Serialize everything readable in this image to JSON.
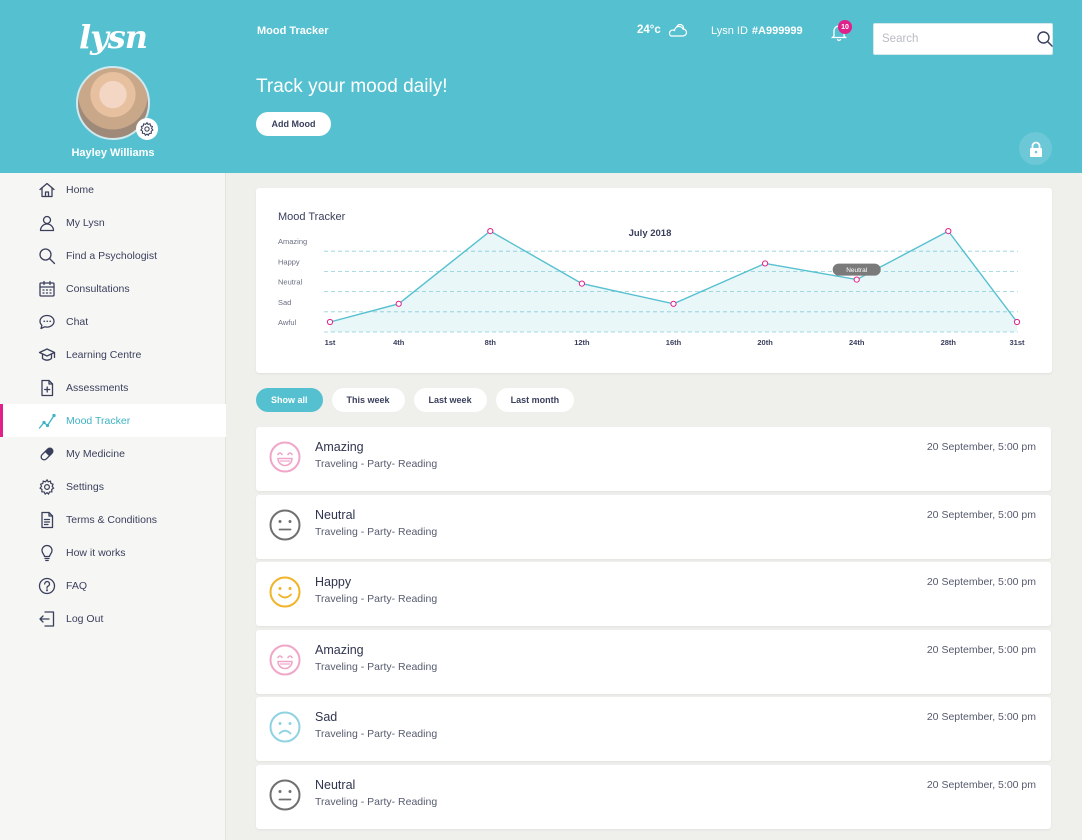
{
  "brand": {
    "logo": "lysn"
  },
  "profile": {
    "name": "Hayley Williams"
  },
  "sidebar": {
    "items": [
      {
        "label": "Home",
        "icon": "home-icon"
      },
      {
        "label": "My Lysn",
        "icon": "user-icon"
      },
      {
        "label": "Find a Psychologist",
        "icon": "search-icon"
      },
      {
        "label": "Consultations",
        "icon": "calendar-icon"
      },
      {
        "label": "Chat",
        "icon": "chat-icon"
      },
      {
        "label": "Learning Centre",
        "icon": "graduation-cap-icon"
      },
      {
        "label": "Assessments",
        "icon": "document-plus-icon"
      },
      {
        "label": "Mood Tracker",
        "icon": "trend-line-icon",
        "active": true
      },
      {
        "label": "My Medicine",
        "icon": "pill-icon"
      },
      {
        "label": "Settings",
        "icon": "gear-icon"
      },
      {
        "label": "Terms & Conditions",
        "icon": "document-icon"
      },
      {
        "label": "How it works",
        "icon": "lightbulb-icon"
      },
      {
        "label": "FAQ",
        "icon": "question-icon"
      },
      {
        "label": "Log Out",
        "icon": "logout-icon"
      }
    ]
  },
  "header": {
    "title": "Mood Tracker",
    "temperature": "24°c",
    "lysn_id_label": "Lysn ID",
    "lysn_id_value": "#A999999",
    "notification_count": "10",
    "search_placeholder": "Search",
    "headline": "Track your mood daily!",
    "add_mood_label": "Add Mood"
  },
  "colors": {
    "accent": "#55c0cf",
    "highlight": "#e0218a",
    "amazing": "#f0a6c8",
    "neutral": "#707070",
    "happy": "#f0b429",
    "sad": "#8fd2e2"
  },
  "chart_data": {
    "type": "area",
    "title": "Mood Tracker",
    "subtitle": "July 2018",
    "y_levels": [
      "Awful",
      "Sad",
      "Neutral",
      "Happy",
      "Amazing"
    ],
    "x_ticks": [
      "1st",
      "4th",
      "8th",
      "12th",
      "16th",
      "20th",
      "24th",
      "28th",
      "31st"
    ],
    "x_tick_days": [
      1,
      4,
      8,
      12,
      16,
      20,
      24,
      28,
      31
    ],
    "x_range": [
      1,
      31
    ],
    "y_range": [
      0,
      4.5
    ],
    "grid": true,
    "points": [
      {
        "x": 1,
        "y": 0
      },
      {
        "x": 4,
        "y": 0.9
      },
      {
        "x": 8,
        "y": 4.5
      },
      {
        "x": 12,
        "y": 1.9
      },
      {
        "x": 16,
        "y": 0.9
      },
      {
        "x": 20,
        "y": 2.9
      },
      {
        "x": 24,
        "y": 2.1
      },
      {
        "x": 28,
        "y": 4.5
      },
      {
        "x": 31,
        "y": 0
      }
    ],
    "tooltip": {
      "x": 24,
      "label": "Neutral"
    }
  },
  "filters": [
    {
      "label": "Show all",
      "active": true
    },
    {
      "label": "This week",
      "active": false
    },
    {
      "label": "Last week",
      "active": false
    },
    {
      "label": "Last month",
      "active": false
    }
  ],
  "moods": [
    {
      "mood": "Amazing",
      "face": "amazing-face-icon",
      "tags": "Traveling - Party- Reading",
      "time": "20 September, 5:00 pm"
    },
    {
      "mood": "Neutral",
      "face": "neutral-face-icon",
      "tags": "Traveling - Party- Reading",
      "time": "20 September, 5:00 pm"
    },
    {
      "mood": "Happy",
      "face": "happy-face-icon",
      "tags": "Traveling - Party- Reading",
      "time": "20 September, 5:00 pm"
    },
    {
      "mood": "Amazing",
      "face": "amazing-face-icon",
      "tags": "Traveling - Party- Reading",
      "time": "20 September, 5:00 pm"
    },
    {
      "mood": "Sad",
      "face": "sad-face-icon",
      "tags": "Traveling - Party- Reading",
      "time": "20 September, 5:00 pm"
    },
    {
      "mood": "Neutral",
      "face": "neutral-face-icon",
      "tags": "Traveling - Party- Reading",
      "time": "20 September, 5:00 pm"
    }
  ]
}
